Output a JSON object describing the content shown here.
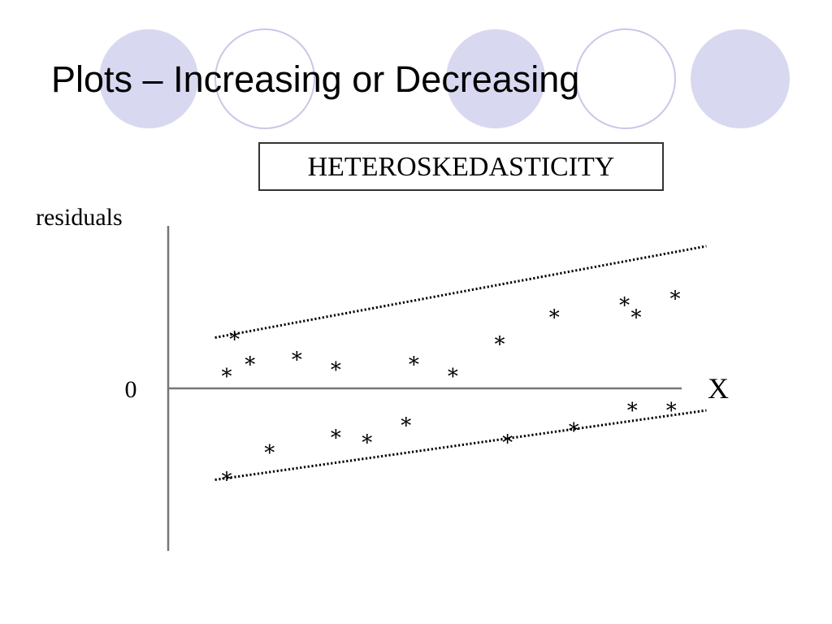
{
  "slide": {
    "title": "Plots – Increasing or Decreasing",
    "colors": {
      "circle_fill": "#d8d8f0",
      "circle_stroke": "#c8c8e8",
      "text": "#000000"
    }
  },
  "chart_data": {
    "type": "scatter",
    "title": "HETEROSKEDASTICITY",
    "xlabel": "X",
    "ylabel": "residuals",
    "zero_label": "0",
    "marker": "*",
    "grid": false,
    "xlim": [
      0,
      14
    ],
    "ylim": [
      -4.8,
      4.8
    ],
    "points": [
      {
        "x": 1.5,
        "y": 0.45
      },
      {
        "x": 1.7,
        "y": 1.55
      },
      {
        "x": 2.1,
        "y": 0.8
      },
      {
        "x": 3.3,
        "y": 0.95
      },
      {
        "x": 4.3,
        "y": 0.65
      },
      {
        "x": 6.3,
        "y": 0.8
      },
      {
        "x": 7.3,
        "y": 0.45
      },
      {
        "x": 8.5,
        "y": 1.4
      },
      {
        "x": 9.9,
        "y": 2.2
      },
      {
        "x": 11.7,
        "y": 2.55
      },
      {
        "x": 12.0,
        "y": 2.2
      },
      {
        "x": 13.0,
        "y": 2.75
      },
      {
        "x": 1.5,
        "y": -2.6
      },
      {
        "x": 2.6,
        "y": -1.8
      },
      {
        "x": 4.3,
        "y": -1.35
      },
      {
        "x": 5.1,
        "y": -1.5
      },
      {
        "x": 6.1,
        "y": -1.0
      },
      {
        "x": 8.7,
        "y": -1.5
      },
      {
        "x": 10.4,
        "y": -1.15
      },
      {
        "x": 11.9,
        "y": -0.55
      },
      {
        "x": 12.9,
        "y": -0.55
      }
    ],
    "bounds": [
      {
        "x": [
          1.2,
          13.8
        ],
        "y": [
          1.5,
          4.2
        ]
      },
      {
        "x": [
          1.2,
          13.8
        ],
        "y": [
          -2.7,
          -0.65
        ]
      }
    ]
  }
}
